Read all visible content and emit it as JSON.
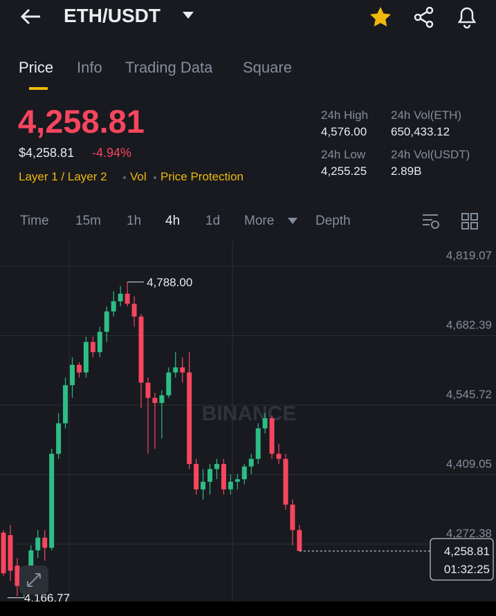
{
  "header": {
    "title": "ETH/USDT"
  },
  "tabs": [
    "Price",
    "Info",
    "Trading Data",
    "Square"
  ],
  "price": {
    "last": "4,258.81",
    "usd": "$4,258.81",
    "change": "-4.94%"
  },
  "tags": [
    "Layer 1 / Layer 2",
    "Vol",
    "Price Protection"
  ],
  "stats": [
    {
      "label": "24h High",
      "value": "4,576.00"
    },
    {
      "label": "24h Vol(ETH)",
      "value": "650,433.12"
    },
    {
      "label": "24h Low",
      "value": "4,255.25"
    },
    {
      "label": "24h Vol(USDT)",
      "value": "2.89B"
    }
  ],
  "intervals": [
    "Time",
    "15m",
    "1h",
    "4h",
    "1d",
    "More",
    "Depth"
  ],
  "chart_data": {
    "type": "candlestick",
    "watermark": "BINANCE",
    "up_color": "#2ebd85",
    "down_color": "#f6465d",
    "open": [
      4295,
      4290,
      4230,
      4190,
      4225,
      4260,
      4285,
      4265,
      4450,
      4510,
      4585,
      4625,
      4610,
      4670,
      4650,
      4690,
      4730,
      4750,
      4765,
      4745,
      4720,
      4590,
      4560,
      4550,
      4565,
      4610,
      4620,
      4610,
      4430,
      4380,
      4395,
      4420,
      4430,
      4380,
      4395,
      4400,
      4425,
      4440,
      4500,
      4520,
      4450,
      4440,
      4350,
      4300
    ],
    "high": [
      4300,
      4310,
      4245,
      4230,
      4270,
      4300,
      4300,
      4460,
      4530,
      4600,
      4640,
      4630,
      4680,
      4680,
      4700,
      4740,
      4770,
      4780,
      4788,
      4760,
      4725,
      4600,
      4570,
      4575,
      4620,
      4650,
      4640,
      4650,
      4440,
      4420,
      4430,
      4440,
      4440,
      4410,
      4410,
      4430,
      4450,
      4510,
      4530,
      4525,
      4470,
      4450,
      4360,
      4310
    ],
    "low": [
      4210,
      4200,
      4170,
      4166.77,
      4210,
      4245,
      4240,
      4260,
      4440,
      4500,
      4560,
      4600,
      4600,
      4640,
      4640,
      4670,
      4720,
      4740,
      4740,
      4700,
      4540,
      4450,
      4460,
      4480,
      4560,
      4600,
      4590,
      4420,
      4370,
      4360,
      4370,
      4400,
      4370,
      4370,
      4380,
      4390,
      4410,
      4430,
      4490,
      4440,
      4430,
      4340,
      4270,
      4258.81
    ],
    "close": [
      4215,
      4220,
      4190,
      4225,
      4260,
      4285,
      4265,
      4450,
      4510,
      4585,
      4625,
      4610,
      4670,
      4650,
      4690,
      4730,
      4750,
      4765,
      4745,
      4720,
      4590,
      4560,
      4550,
      4565,
      4610,
      4620,
      4610,
      4430,
      4380,
      4395,
      4420,
      4430,
      4380,
      4395,
      4400,
      4425,
      4440,
      4500,
      4520,
      4450,
      4440,
      4350,
      4300,
      4258.81
    ],
    "ylim": [
      4159.5,
      4869.4
    ],
    "yticks": [
      {
        "value": 4819.07,
        "label": "4,819.07"
      },
      {
        "value": 4682.39,
        "label": "4,682.39"
      },
      {
        "value": 4545.72,
        "label": "4,545.72"
      },
      {
        "value": 4409.05,
        "label": "4,409.05"
      },
      {
        "value": 4272.38,
        "label": "4,272.38"
      }
    ],
    "grid": true,
    "high_marker": {
      "value": 4788,
      "label": "4,788.00"
    },
    "low_marker": {
      "value": 4166.77,
      "label": "4,166.77"
    },
    "last_price": {
      "value": 4258.81,
      "label": "4,258.81"
    },
    "countdown": "01:32:25"
  }
}
